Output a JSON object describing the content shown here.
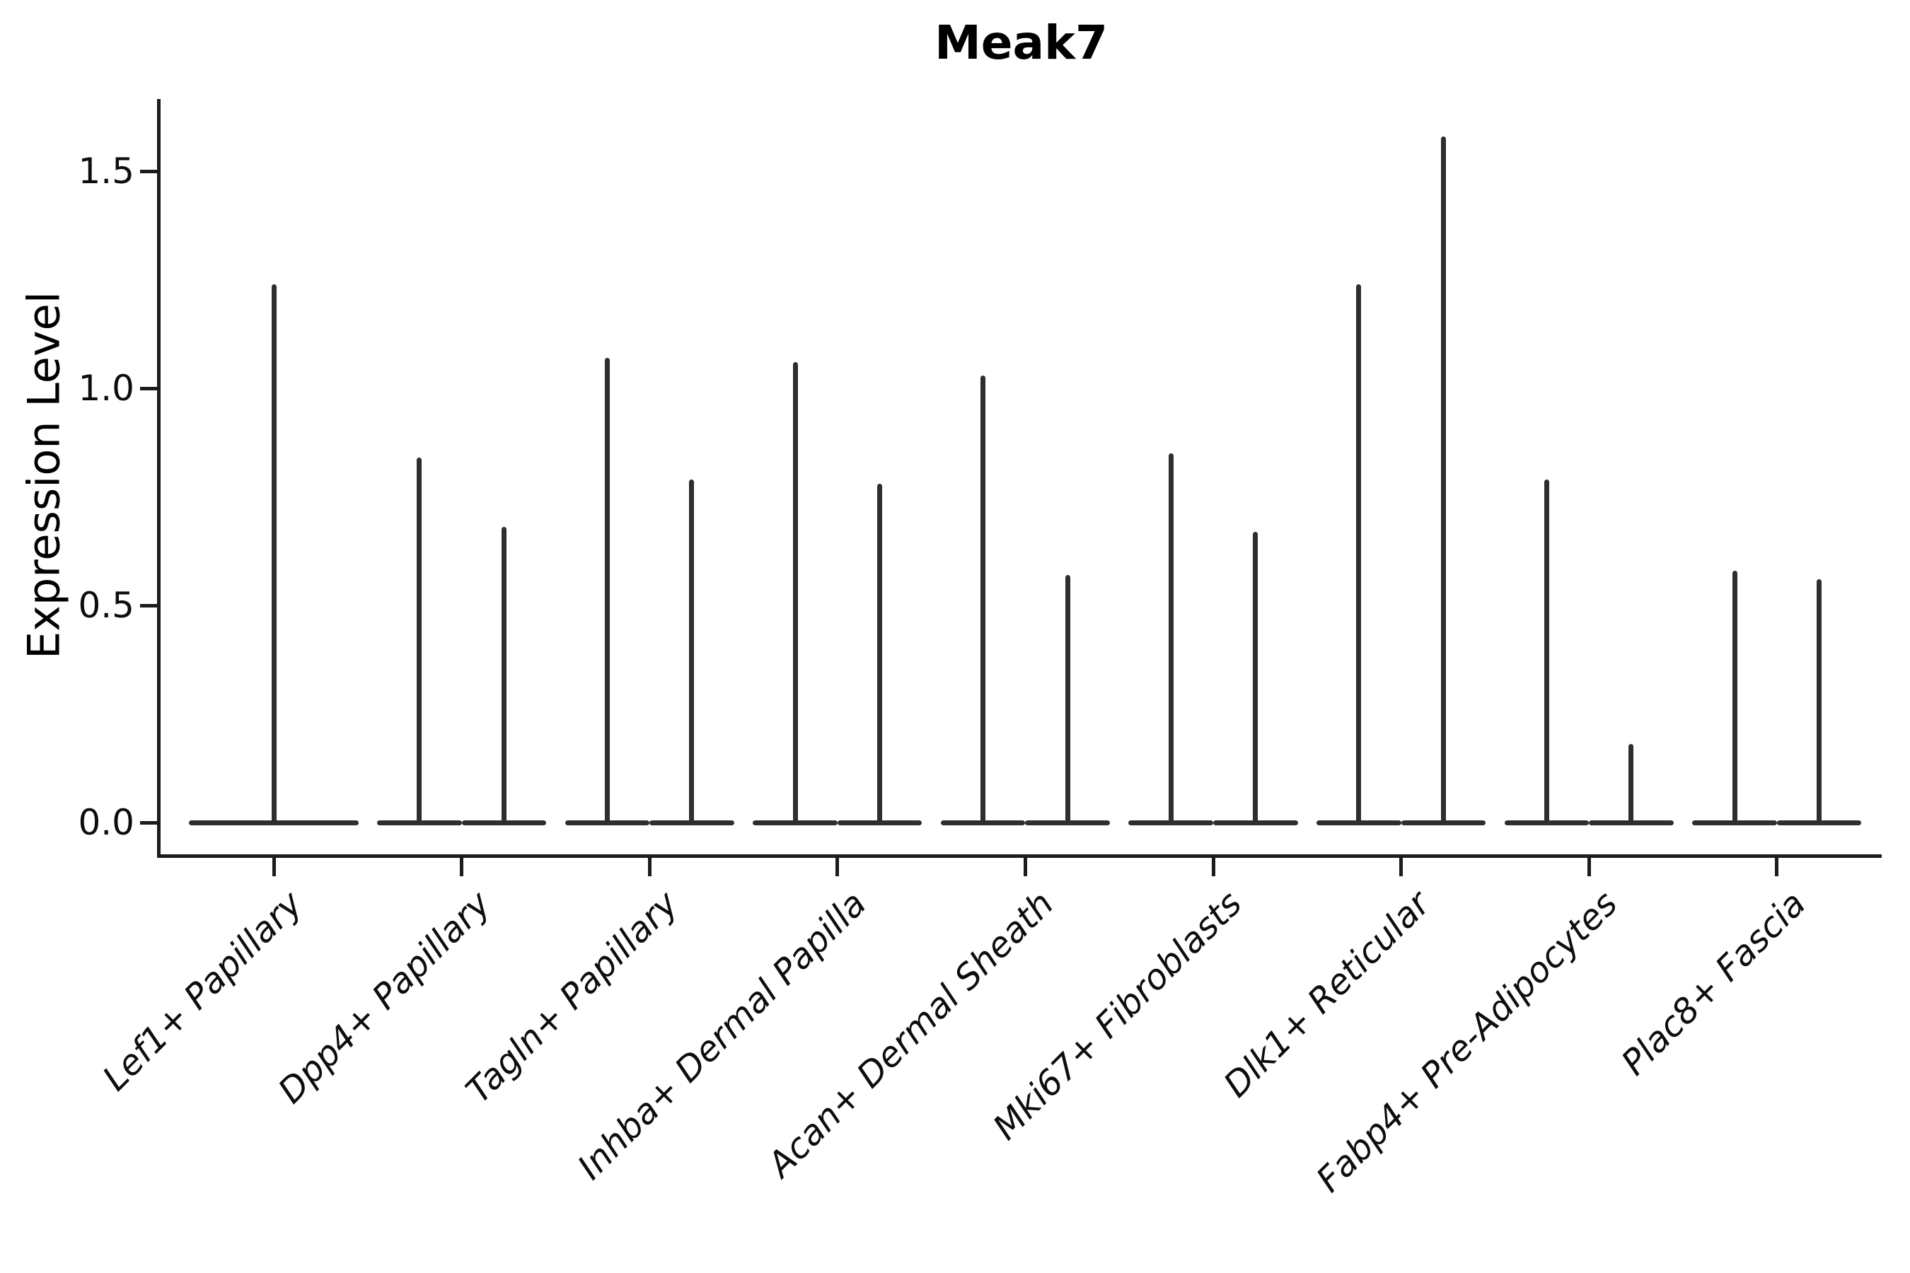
{
  "title": "Meak7",
  "ylabel": "Expression Level",
  "chart_data": {
    "type": "violin",
    "title": "Meak7",
    "xlabel": "",
    "ylabel": "Expression Level",
    "yticks": [
      0.0,
      0.5,
      1.0,
      1.5
    ],
    "ylim": [
      -0.07,
      1.67
    ],
    "grid": false,
    "legend": false,
    "stroke_color": "#2e2e2e",
    "axis_color": "#1c1c1c",
    "description": "Violin plot of Meak7 expression per fibroblast cluster; violins collapse to a wide zero-line with thin spikes up to the maximum expression. First category has one full-width centered violin, all others have two side-by-side violins.",
    "categories": [
      "Lef1+ Papillary",
      "Dpp4+ Papillary",
      "Tagln+ Papillary",
      "Inhba+ Dermal Papilla",
      "Acan+ Dermal Sheath",
      "Mki67+ Fibroblasts",
      "Dlk1+ Reticular",
      "Fabp4+ Pre-Adipocytes",
      "Plac8+ Fascia"
    ],
    "violins": [
      {
        "category": "Lef1+ Papillary",
        "spikes": [
          {
            "offset": 0,
            "width": 0.9,
            "max": 1.24
          }
        ]
      },
      {
        "category": "Dpp4+ Papillary",
        "spikes": [
          {
            "offset": -0.225,
            "width": 0.45,
            "max": 0.84
          },
          {
            "offset": 0.225,
            "width": 0.45,
            "max": 0.68
          }
        ]
      },
      {
        "category": "Tagln+ Papillary",
        "spikes": [
          {
            "offset": -0.225,
            "width": 0.45,
            "max": 1.07
          },
          {
            "offset": 0.225,
            "width": 0.45,
            "max": 0.79
          }
        ]
      },
      {
        "category": "Inhba+ Dermal Papilla",
        "spikes": [
          {
            "offset": -0.225,
            "width": 0.45,
            "max": 1.06
          },
          {
            "offset": 0.225,
            "width": 0.45,
            "max": 0.78
          }
        ]
      },
      {
        "category": "Acan+ Dermal Sheath",
        "spikes": [
          {
            "offset": -0.225,
            "width": 0.45,
            "max": 1.03
          },
          {
            "offset": 0.225,
            "width": 0.45,
            "max": 0.57
          }
        ]
      },
      {
        "category": "Mki67+ Fibroblasts",
        "spikes": [
          {
            "offset": -0.225,
            "width": 0.45,
            "max": 0.85
          },
          {
            "offset": 0.225,
            "width": 0.45,
            "max": 0.67
          }
        ]
      },
      {
        "category": "Dlk1+ Reticular",
        "spikes": [
          {
            "offset": -0.225,
            "width": 0.45,
            "max": 1.24
          },
          {
            "offset": 0.225,
            "width": 0.45,
            "max": 1.58
          }
        ]
      },
      {
        "category": "Fabp4+ Pre-Adipocytes",
        "spikes": [
          {
            "offset": -0.225,
            "width": 0.45,
            "max": 0.79
          },
          {
            "offset": 0.225,
            "width": 0.45,
            "max": 0.18
          }
        ]
      },
      {
        "category": "Plac8+ Fascia",
        "spikes": [
          {
            "offset": -0.225,
            "width": 0.45,
            "max": 0.58
          },
          {
            "offset": 0.225,
            "width": 0.45,
            "max": 0.56
          }
        ]
      }
    ]
  }
}
